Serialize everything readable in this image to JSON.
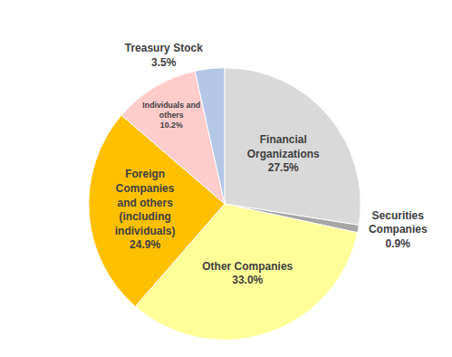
{
  "chart_data": {
    "type": "pie",
    "categories": [
      "Financial\nOrganizations",
      "Securities\nCompanies",
      "Other Companies",
      "Foreign\nCompanies\nand others\n(including\nindividuals)",
      "Individuals and\nothers",
      "Treasury Stock"
    ],
    "values": [
      27.5,
      0.9,
      33.0,
      24.9,
      10.2,
      3.5
    ],
    "value_labels": [
      "27.5%",
      "0.9%",
      "33.0%",
      "24.9%",
      "10.2%",
      "3.5%"
    ],
    "colors": [
      "#d9d9d9",
      "#a6a6a6",
      "#ffff99",
      "#ffc000",
      "#ffcccc",
      "#b4c7e7"
    ],
    "data_labels": true
  }
}
